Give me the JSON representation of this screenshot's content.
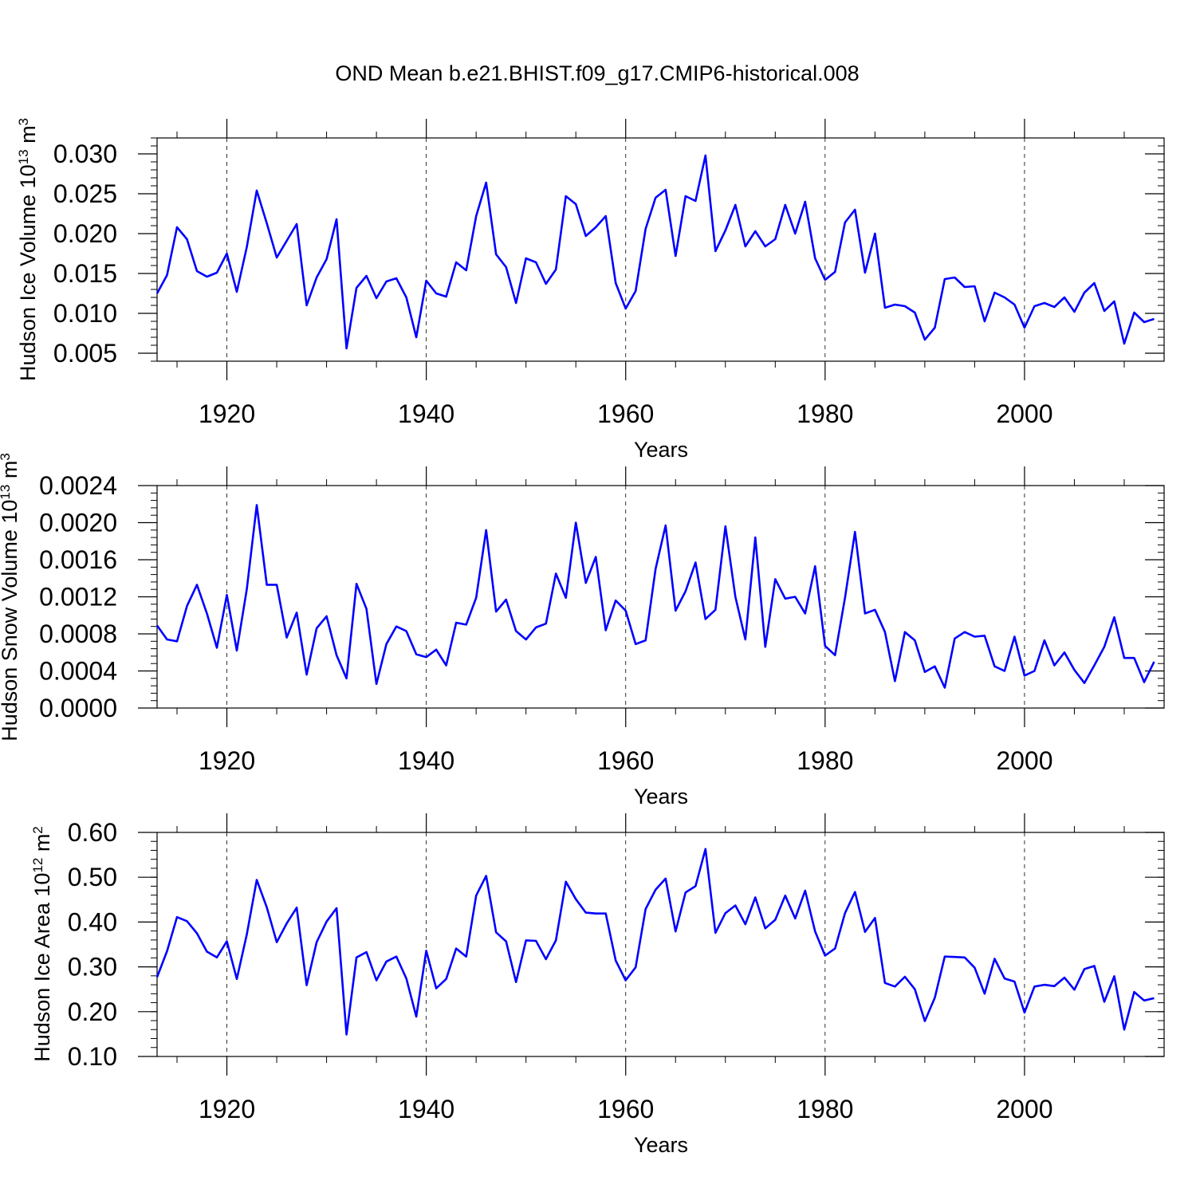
{
  "title": "OND Mean b.e21.BHIST.f09_g17.CMIP6-historical.008",
  "colors": {
    "line": "#0000ff",
    "axis": "#000000",
    "grid": "#000000",
    "background": "#ffffff"
  },
  "chart_data": [
    {
      "type": "line",
      "ylabel_text": "Hudson Ice Volume 10",
      "ylabel_exp": "13",
      "ylabel_unit": " m",
      "ylabel_unit_exp": "3",
      "xlabel": "Years",
      "xlim": [
        1913,
        2014
      ],
      "ylim": [
        0.004,
        0.032
      ],
      "yticks": [
        0.005,
        0.01,
        0.015,
        0.02,
        0.025,
        0.03
      ],
      "yticklabels": [
        "0.005",
        "0.010",
        "0.015",
        "0.020",
        "0.025",
        "0.030"
      ],
      "xticks": [
        1920,
        1940,
        1960,
        1980,
        2000
      ],
      "xticklabels": [
        "1920",
        "1940",
        "1960",
        "1980",
        "2000"
      ],
      "grid_x": true,
      "x_start": 1913,
      "values": [
        0.0125,
        0.0148,
        0.0208,
        0.0193,
        0.0153,
        0.0146,
        0.0151,
        0.0175,
        0.0127,
        0.0183,
        0.0254,
        0.0213,
        0.017,
        0.0191,
        0.0212,
        0.011,
        0.0145,
        0.0168,
        0.0218,
        0.0056,
        0.0132,
        0.0147,
        0.0119,
        0.014,
        0.0144,
        0.012,
        0.007,
        0.0141,
        0.0125,
        0.0121,
        0.0164,
        0.0154,
        0.0222,
        0.0264,
        0.0174,
        0.0158,
        0.0113,
        0.0169,
        0.0164,
        0.0137,
        0.0155,
        0.0247,
        0.0237,
        0.0197,
        0.0208,
        0.0222,
        0.0138,
        0.0106,
        0.0128,
        0.0206,
        0.0245,
        0.0255,
        0.0172,
        0.0247,
        0.0241,
        0.0298,
        0.0178,
        0.0204,
        0.0236,
        0.0184,
        0.0203,
        0.0184,
        0.0193,
        0.0236,
        0.02,
        0.024,
        0.0169,
        0.0142,
        0.0152,
        0.0214,
        0.023,
        0.0151,
        0.02,
        0.0107,
        0.0111,
        0.0109,
        0.0101,
        0.0067,
        0.0082,
        0.0143,
        0.0145,
        0.0133,
        0.0134,
        0.009,
        0.0126,
        0.012,
        0.0111,
        0.0082,
        0.0109,
        0.0113,
        0.0108,
        0.012,
        0.0102,
        0.0126,
        0.0138,
        0.0103,
        0.0115,
        0.0062,
        0.0101,
        0.0089,
        0.0093
      ]
    },
    {
      "type": "line",
      "ylabel_text": "Hudson Snow Volume 10",
      "ylabel_exp": "13",
      "ylabel_unit": " m",
      "ylabel_unit_exp": "3",
      "xlabel": "Years",
      "xlim": [
        1913,
        2014
      ],
      "ylim": [
        0.0,
        0.0024
      ],
      "yticks": [
        0.0,
        0.0004,
        0.0008,
        0.0012,
        0.0016,
        0.002,
        0.0024
      ],
      "yticklabels": [
        "0.0000",
        "0.0004",
        "0.0008",
        "0.0012",
        "0.0016",
        "0.0020",
        "0.0024"
      ],
      "xticks": [
        1920,
        1940,
        1960,
        1980,
        2000
      ],
      "xticklabels": [
        "1920",
        "1940",
        "1960",
        "1980",
        "2000"
      ],
      "grid_x": true,
      "x_start": 1913,
      "values": [
        0.00089,
        0.00074,
        0.00072,
        0.0011,
        0.00133,
        0.00102,
        0.00065,
        0.00122,
        0.00062,
        0.00128,
        0.00219,
        0.00133,
        0.00133,
        0.00076,
        0.00103,
        0.00036,
        0.00086,
        0.00099,
        0.00057,
        0.00032,
        0.00134,
        0.00107,
        0.00026,
        0.00069,
        0.00088,
        0.00083,
        0.00058,
        0.00055,
        0.00063,
        0.00046,
        0.00092,
        0.0009,
        0.00119,
        0.00192,
        0.00104,
        0.00117,
        0.00083,
        0.00074,
        0.00087,
        0.00091,
        0.00145,
        0.00119,
        0.002,
        0.00135,
        0.00163,
        0.00084,
        0.00116,
        0.00105,
        0.00069,
        0.00073,
        0.0015,
        0.00197,
        0.00105,
        0.00126,
        0.00157,
        0.00096,
        0.00106,
        0.00196,
        0.0012,
        0.00074,
        0.00184,
        0.00066,
        0.00139,
        0.00118,
        0.0012,
        0.00102,
        0.00153,
        0.00067,
        0.00057,
        0.00119,
        0.0019,
        0.00102,
        0.00106,
        0.00082,
        0.00029,
        0.00082,
        0.00073,
        0.00039,
        0.00045,
        0.00022,
        0.00075,
        0.00082,
        0.00077,
        0.00078,
        0.00045,
        0.0004,
        0.00077,
        0.00035,
        0.0004,
        0.00073,
        0.00046,
        0.0006,
        0.00041,
        0.00027,
        0.00046,
        0.00066,
        0.00098,
        0.00054,
        0.00054,
        0.00028,
        0.0005
      ]
    },
    {
      "type": "line",
      "ylabel_text": "Hudson Ice Area 10",
      "ylabel_exp": "12",
      "ylabel_unit": " m",
      "ylabel_unit_exp": "2",
      "xlabel": "Years",
      "xlim": [
        1913,
        2014
      ],
      "ylim": [
        0.1,
        0.6
      ],
      "yticks": [
        0.1,
        0.2,
        0.3,
        0.4,
        0.5,
        0.6
      ],
      "yticklabels": [
        "0.10",
        "0.20",
        "0.30",
        "0.40",
        "0.50",
        "0.60"
      ],
      "xticks": [
        1920,
        1940,
        1960,
        1980,
        2000
      ],
      "xticklabels": [
        "1920",
        "1940",
        "1960",
        "1980",
        "2000"
      ],
      "grid_x": true,
      "x_start": 1913,
      "values": [
        0.277,
        0.335,
        0.411,
        0.402,
        0.375,
        0.334,
        0.321,
        0.357,
        0.273,
        0.372,
        0.494,
        0.433,
        0.355,
        0.397,
        0.432,
        0.259,
        0.355,
        0.401,
        0.431,
        0.149,
        0.321,
        0.333,
        0.27,
        0.312,
        0.323,
        0.274,
        0.189,
        0.336,
        0.252,
        0.273,
        0.341,
        0.323,
        0.459,
        0.503,
        0.377,
        0.357,
        0.266,
        0.359,
        0.358,
        0.317,
        0.359,
        0.49,
        0.451,
        0.421,
        0.419,
        0.419,
        0.314,
        0.27,
        0.299,
        0.429,
        0.472,
        0.497,
        0.379,
        0.466,
        0.48,
        0.563,
        0.376,
        0.42,
        0.437,
        0.395,
        0.455,
        0.386,
        0.405,
        0.459,
        0.408,
        0.47,
        0.379,
        0.325,
        0.341,
        0.42,
        0.467,
        0.378,
        0.409,
        0.264,
        0.256,
        0.278,
        0.25,
        0.179,
        0.231,
        0.323,
        0.322,
        0.321,
        0.298,
        0.24,
        0.318,
        0.274,
        0.267,
        0.198,
        0.256,
        0.26,
        0.257,
        0.276,
        0.249,
        0.295,
        0.302,
        0.222,
        0.279,
        0.16,
        0.244,
        0.225,
        0.23
      ]
    }
  ]
}
